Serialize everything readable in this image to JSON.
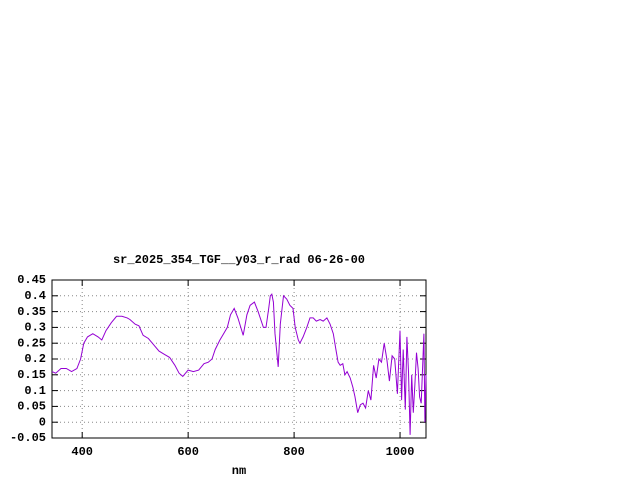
{
  "chart_data": {
    "type": "line",
    "title": "sr_2025_354_TGF__y03_r_rad 06-26-00",
    "x_label": "nm",
    "x": [
      343,
      350,
      360,
      370,
      380,
      390,
      397,
      403,
      410,
      420,
      430,
      437,
      445,
      455,
      465,
      475,
      485,
      490,
      500,
      507,
      515,
      525,
      535,
      545,
      555,
      565,
      575,
      583,
      590,
      600,
      610,
      620,
      630,
      638,
      645,
      651,
      660,
      667,
      674,
      680,
      687,
      694,
      704,
      711,
      717,
      725,
      732,
      742,
      747,
      752,
      755,
      758,
      761,
      764,
      770,
      774,
      780,
      786,
      792,
      798,
      802,
      808,
      811,
      817,
      824,
      830,
      836,
      842,
      849,
      855,
      862,
      868,
      874,
      879,
      883,
      887,
      892,
      896,
      900,
      906,
      911,
      915,
      920,
      925,
      930,
      935,
      940,
      945,
      950,
      955,
      960,
      965,
      970,
      975,
      980,
      985,
      990,
      995,
      1000,
      1003,
      1006,
      1010,
      1013,
      1016,
      1019,
      1022,
      1025,
      1028,
      1031,
      1034,
      1037,
      1040,
      1043,
      1045,
      1047,
      1049
    ],
    "series": [
      {
        "name": "sr_2025_354_TGF__y03_r_rad",
        "color": "#9400d3",
        "values": [
          0.16,
          0.155,
          0.17,
          0.17,
          0.16,
          0.17,
          0.2,
          0.25,
          0.27,
          0.28,
          0.27,
          0.26,
          0.29,
          0.315,
          0.335,
          0.335,
          0.33,
          0.325,
          0.31,
          0.305,
          0.275,
          0.265,
          0.245,
          0.225,
          0.215,
          0.205,
          0.18,
          0.155,
          0.145,
          0.165,
          0.16,
          0.165,
          0.185,
          0.19,
          0.2,
          0.23,
          0.26,
          0.28,
          0.3,
          0.34,
          0.36,
          0.33,
          0.275,
          0.34,
          0.37,
          0.38,
          0.35,
          0.3,
          0.3,
          0.36,
          0.4,
          0.405,
          0.38,
          0.28,
          0.175,
          0.31,
          0.4,
          0.39,
          0.37,
          0.36,
          0.3,
          0.26,
          0.25,
          0.27,
          0.3,
          0.33,
          0.33,
          0.32,
          0.325,
          0.32,
          0.33,
          0.31,
          0.28,
          0.23,
          0.19,
          0.18,
          0.185,
          0.15,
          0.16,
          0.14,
          0.11,
          0.08,
          0.03,
          0.055,
          0.06,
          0.045,
          0.1,
          0.07,
          0.18,
          0.14,
          0.2,
          0.19,
          0.25,
          0.2,
          0.13,
          0.21,
          0.2,
          0.09,
          0.29,
          0.07,
          0.23,
          0.04,
          0.27,
          0.16,
          -0.04,
          0.15,
          0.03,
          0.12,
          0.22,
          0.17,
          0.08,
          0.06,
          0.19,
          0.28,
          0.0,
          0.15
        ]
      }
    ],
    "xlim": [
      343,
      1049
    ],
    "ylim": [
      -0.05,
      0.45
    ],
    "xticks": [
      400,
      600,
      800,
      1000
    ],
    "yticks": [
      -0.05,
      0,
      0.05,
      0.1,
      0.15,
      0.2,
      0.25,
      0.3,
      0.35,
      0.4,
      0.45
    ],
    "grid": true
  }
}
